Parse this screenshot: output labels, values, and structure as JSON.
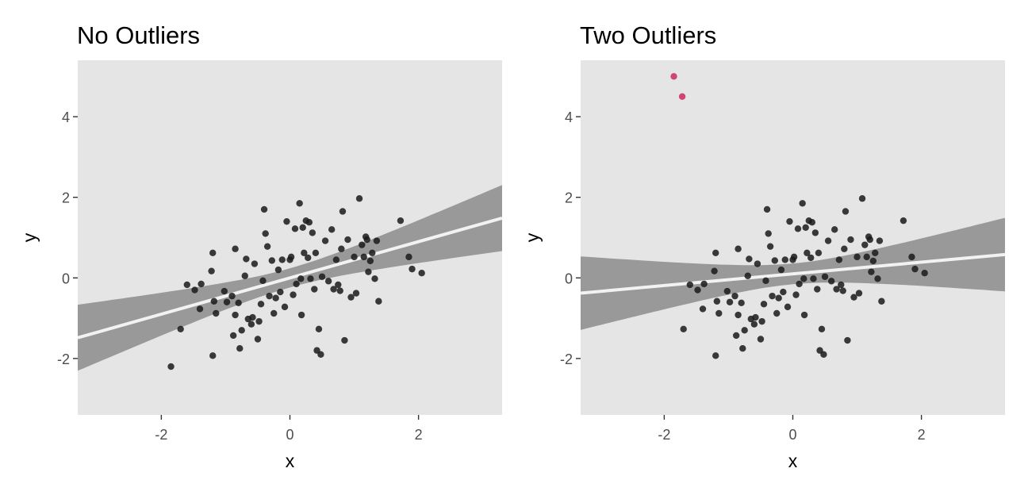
{
  "chart_data": [
    {
      "type": "scatter",
      "title": "No Outliers",
      "xlabel": "x",
      "ylabel": "y",
      "xlim": [
        -3.3,
        3.3
      ],
      "ylim": [
        -3.4,
        5.4
      ],
      "xticks": [
        -2,
        0,
        2
      ],
      "yticks": [
        -2,
        0,
        2,
        4
      ],
      "xtick_labels": [
        "-2",
        "0",
        "2"
      ],
      "ytick_labels": [
        "-2",
        "0",
        "2",
        "4"
      ],
      "grid": false,
      "panel_background": "#e5e5e5",
      "point_color": "#1a1a1a",
      "ribbon_color": "#999999",
      "fit_line_color": "#f2f2f2",
      "fit": {
        "intercept": 0.0,
        "slope": 0.45,
        "se_intercept": 0.12,
        "se_slope": 0.12
      },
      "points": [
        {
          "x": -1.85,
          "y": -2.2
        },
        {
          "x": -1.7,
          "y": -1.27
        },
        {
          "x": -1.6,
          "y": -0.17
        },
        {
          "x": -1.48,
          "y": -0.3
        },
        {
          "x": -1.38,
          "y": -0.15
        },
        {
          "x": -1.4,
          "y": -0.77
        },
        {
          "x": -1.2,
          "y": -1.93
        },
        {
          "x": -1.2,
          "y": 0.62
        },
        {
          "x": -1.22,
          "y": 0.17
        },
        {
          "x": -1.18,
          "y": -0.58
        },
        {
          "x": -1.15,
          "y": -0.88
        },
        {
          "x": -1.02,
          "y": -0.33
        },
        {
          "x": -0.98,
          "y": -0.6
        },
        {
          "x": -0.9,
          "y": -0.45
        },
        {
          "x": -0.85,
          "y": -0.92
        },
        {
          "x": -0.88,
          "y": -1.43
        },
        {
          "x": -0.85,
          "y": 0.72
        },
        {
          "x": -0.8,
          "y": -0.62
        },
        {
          "x": -0.78,
          "y": -1.75
        },
        {
          "x": -0.75,
          "y": -1.3
        },
        {
          "x": -0.7,
          "y": 0.05
        },
        {
          "x": -0.68,
          "y": 0.47
        },
        {
          "x": -0.65,
          "y": -1.02
        },
        {
          "x": -0.6,
          "y": -1.15
        },
        {
          "x": -0.58,
          "y": -0.98
        },
        {
          "x": -0.55,
          "y": 0.35
        },
        {
          "x": -0.5,
          "y": -1.52
        },
        {
          "x": -0.48,
          "y": -1.08
        },
        {
          "x": -0.45,
          "y": -0.65
        },
        {
          "x": -0.42,
          "y": -0.07
        },
        {
          "x": -0.4,
          "y": 1.7
        },
        {
          "x": -0.38,
          "y": 1.1
        },
        {
          "x": -0.35,
          "y": 0.78
        },
        {
          "x": -0.32,
          "y": -0.45
        },
        {
          "x": -0.28,
          "y": 0.43
        },
        {
          "x": -0.25,
          "y": -0.88
        },
        {
          "x": -0.22,
          "y": -0.5
        },
        {
          "x": -0.18,
          "y": 0.2
        },
        {
          "x": -0.15,
          "y": -0.35
        },
        {
          "x": -0.12,
          "y": 0.45
        },
        {
          "x": -0.08,
          "y": -0.72
        },
        {
          "x": -0.05,
          "y": 1.4
        },
        {
          "x": 0.0,
          "y": 0.45
        },
        {
          "x": 0.02,
          "y": 0.52
        },
        {
          "x": 0.05,
          "y": -0.42
        },
        {
          "x": 0.08,
          "y": 1.22
        },
        {
          "x": 0.1,
          "y": -0.15
        },
        {
          "x": 0.15,
          "y": 1.85
        },
        {
          "x": 0.17,
          "y": -0.02
        },
        {
          "x": 0.18,
          "y": -0.92
        },
        {
          "x": 0.2,
          "y": 1.25
        },
        {
          "x": 0.22,
          "y": 0.62
        },
        {
          "x": 0.25,
          "y": 1.42
        },
        {
          "x": 0.28,
          "y": 0.5
        },
        {
          "x": 0.3,
          "y": 1.38
        },
        {
          "x": 0.32,
          "y": -0.02
        },
        {
          "x": 0.35,
          "y": 1.12
        },
        {
          "x": 0.38,
          "y": -0.28
        },
        {
          "x": 0.4,
          "y": 0.62
        },
        {
          "x": 0.42,
          "y": -1.8
        },
        {
          "x": 0.45,
          "y": -1.27
        },
        {
          "x": 0.48,
          "y": -1.9
        },
        {
          "x": 0.5,
          "y": 0.03
        },
        {
          "x": 0.55,
          "y": 0.92
        },
        {
          "x": 0.6,
          "y": -0.08
        },
        {
          "x": 0.65,
          "y": 1.2
        },
        {
          "x": 0.68,
          "y": -0.28
        },
        {
          "x": 0.72,
          "y": 0.45
        },
        {
          "x": 0.75,
          "y": -0.17
        },
        {
          "x": 0.78,
          "y": -0.32
        },
        {
          "x": 0.8,
          "y": 0.72
        },
        {
          "x": 0.82,
          "y": 1.65
        },
        {
          "x": 0.85,
          "y": -1.55
        },
        {
          "x": 0.9,
          "y": 0.95
        },
        {
          "x": 0.95,
          "y": -0.48
        },
        {
          "x": 1.0,
          "y": 0.52
        },
        {
          "x": 1.03,
          "y": -0.38
        },
        {
          "x": 1.08,
          "y": 1.97
        },
        {
          "x": 1.12,
          "y": 0.82
        },
        {
          "x": 1.15,
          "y": 0.52
        },
        {
          "x": 1.18,
          "y": 1.02
        },
        {
          "x": 1.2,
          "y": 0.95
        },
        {
          "x": 1.22,
          "y": 0.15
        },
        {
          "x": 1.25,
          "y": 0.42
        },
        {
          "x": 1.28,
          "y": 0.62
        },
        {
          "x": 1.32,
          "y": -0.02
        },
        {
          "x": 1.35,
          "y": 0.92
        },
        {
          "x": 1.38,
          "y": -0.58
        },
        {
          "x": 1.72,
          "y": 1.42
        },
        {
          "x": 1.85,
          "y": 0.52
        },
        {
          "x": 1.9,
          "y": 0.22
        },
        {
          "x": 2.05,
          "y": 0.12
        }
      ]
    },
    {
      "type": "scatter",
      "title": "Two Outliers",
      "xlabel": "x",
      "ylabel": "y",
      "xlim": [
        -3.3,
        3.3
      ],
      "ylim": [
        -3.4,
        5.4
      ],
      "xticks": [
        -2,
        0,
        2
      ],
      "yticks": [
        -2,
        0,
        2,
        4
      ],
      "xtick_labels": [
        "-2",
        "0",
        "2"
      ],
      "ytick_labels": [
        "-2",
        "0",
        "2",
        "4"
      ],
      "grid": false,
      "panel_background": "#e5e5e5",
      "point_color": "#1a1a1a",
      "outlier_color": "#cc3366",
      "ribbon_color": "#999999",
      "fit_line_color": "#f2f2f2",
      "fit": {
        "intercept": 0.1,
        "slope": 0.145,
        "se_intercept": 0.13,
        "se_slope": 0.134
      },
      "outliers": [
        {
          "x": -1.85,
          "y": 5.0
        },
        {
          "x": -1.72,
          "y": 4.5
        }
      ],
      "points": [
        {
          "x": -1.7,
          "y": -1.27
        },
        {
          "x": -1.6,
          "y": -0.17
        },
        {
          "x": -1.48,
          "y": -0.3
        },
        {
          "x": -1.38,
          "y": -0.15
        },
        {
          "x": -1.4,
          "y": -0.77
        },
        {
          "x": -1.2,
          "y": -1.93
        },
        {
          "x": -1.2,
          "y": 0.62
        },
        {
          "x": -1.22,
          "y": 0.17
        },
        {
          "x": -1.18,
          "y": -0.58
        },
        {
          "x": -1.15,
          "y": -0.88
        },
        {
          "x": -1.02,
          "y": -0.33
        },
        {
          "x": -0.98,
          "y": -0.6
        },
        {
          "x": -0.9,
          "y": -0.45
        },
        {
          "x": -0.85,
          "y": -0.92
        },
        {
          "x": -0.88,
          "y": -1.43
        },
        {
          "x": -0.85,
          "y": 0.72
        },
        {
          "x": -0.8,
          "y": -0.62
        },
        {
          "x": -0.78,
          "y": -1.75
        },
        {
          "x": -0.75,
          "y": -1.3
        },
        {
          "x": -0.7,
          "y": 0.05
        },
        {
          "x": -0.68,
          "y": 0.47
        },
        {
          "x": -0.65,
          "y": -1.02
        },
        {
          "x": -0.6,
          "y": -1.15
        },
        {
          "x": -0.58,
          "y": -0.98
        },
        {
          "x": -0.55,
          "y": 0.35
        },
        {
          "x": -0.5,
          "y": -1.52
        },
        {
          "x": -0.48,
          "y": -1.08
        },
        {
          "x": -0.45,
          "y": -0.65
        },
        {
          "x": -0.42,
          "y": -0.07
        },
        {
          "x": -0.4,
          "y": 1.7
        },
        {
          "x": -0.38,
          "y": 1.1
        },
        {
          "x": -0.35,
          "y": 0.78
        },
        {
          "x": -0.32,
          "y": -0.45
        },
        {
          "x": -0.28,
          "y": 0.43
        },
        {
          "x": -0.25,
          "y": -0.88
        },
        {
          "x": -0.22,
          "y": -0.5
        },
        {
          "x": -0.18,
          "y": 0.2
        },
        {
          "x": -0.15,
          "y": -0.35
        },
        {
          "x": -0.12,
          "y": 0.45
        },
        {
          "x": -0.08,
          "y": -0.72
        },
        {
          "x": -0.05,
          "y": 1.4
        },
        {
          "x": 0.0,
          "y": 0.45
        },
        {
          "x": 0.02,
          "y": 0.52
        },
        {
          "x": 0.05,
          "y": -0.42
        },
        {
          "x": 0.08,
          "y": 1.22
        },
        {
          "x": 0.1,
          "y": -0.15
        },
        {
          "x": 0.15,
          "y": 1.85
        },
        {
          "x": 0.17,
          "y": -0.02
        },
        {
          "x": 0.18,
          "y": -0.92
        },
        {
          "x": 0.2,
          "y": 1.25
        },
        {
          "x": 0.22,
          "y": 0.62
        },
        {
          "x": 0.25,
          "y": 1.42
        },
        {
          "x": 0.28,
          "y": 0.5
        },
        {
          "x": 0.3,
          "y": 1.38
        },
        {
          "x": 0.32,
          "y": -0.02
        },
        {
          "x": 0.35,
          "y": 1.12
        },
        {
          "x": 0.38,
          "y": -0.28
        },
        {
          "x": 0.4,
          "y": 0.62
        },
        {
          "x": 0.42,
          "y": -1.8
        },
        {
          "x": 0.45,
          "y": -1.27
        },
        {
          "x": 0.48,
          "y": -1.9
        },
        {
          "x": 0.5,
          "y": 0.03
        },
        {
          "x": 0.55,
          "y": 0.92
        },
        {
          "x": 0.6,
          "y": -0.08
        },
        {
          "x": 0.65,
          "y": 1.2
        },
        {
          "x": 0.68,
          "y": -0.28
        },
        {
          "x": 0.72,
          "y": 0.45
        },
        {
          "x": 0.75,
          "y": -0.17
        },
        {
          "x": 0.78,
          "y": -0.32
        },
        {
          "x": 0.8,
          "y": 0.72
        },
        {
          "x": 0.82,
          "y": 1.65
        },
        {
          "x": 0.85,
          "y": -1.55
        },
        {
          "x": 0.9,
          "y": 0.95
        },
        {
          "x": 0.95,
          "y": -0.48
        },
        {
          "x": 1.0,
          "y": 0.52
        },
        {
          "x": 1.03,
          "y": -0.38
        },
        {
          "x": 1.08,
          "y": 1.97
        },
        {
          "x": 1.12,
          "y": 0.82
        },
        {
          "x": 1.15,
          "y": 0.52
        },
        {
          "x": 1.18,
          "y": 1.02
        },
        {
          "x": 1.2,
          "y": 0.95
        },
        {
          "x": 1.22,
          "y": 0.15
        },
        {
          "x": 1.25,
          "y": 0.42
        },
        {
          "x": 1.28,
          "y": 0.62
        },
        {
          "x": 1.32,
          "y": -0.02
        },
        {
          "x": 1.35,
          "y": 0.92
        },
        {
          "x": 1.38,
          "y": -0.58
        },
        {
          "x": 1.72,
          "y": 1.42
        },
        {
          "x": 1.85,
          "y": 0.52
        },
        {
          "x": 1.9,
          "y": 0.22
        },
        {
          "x": 2.05,
          "y": 0.12
        }
      ]
    }
  ]
}
